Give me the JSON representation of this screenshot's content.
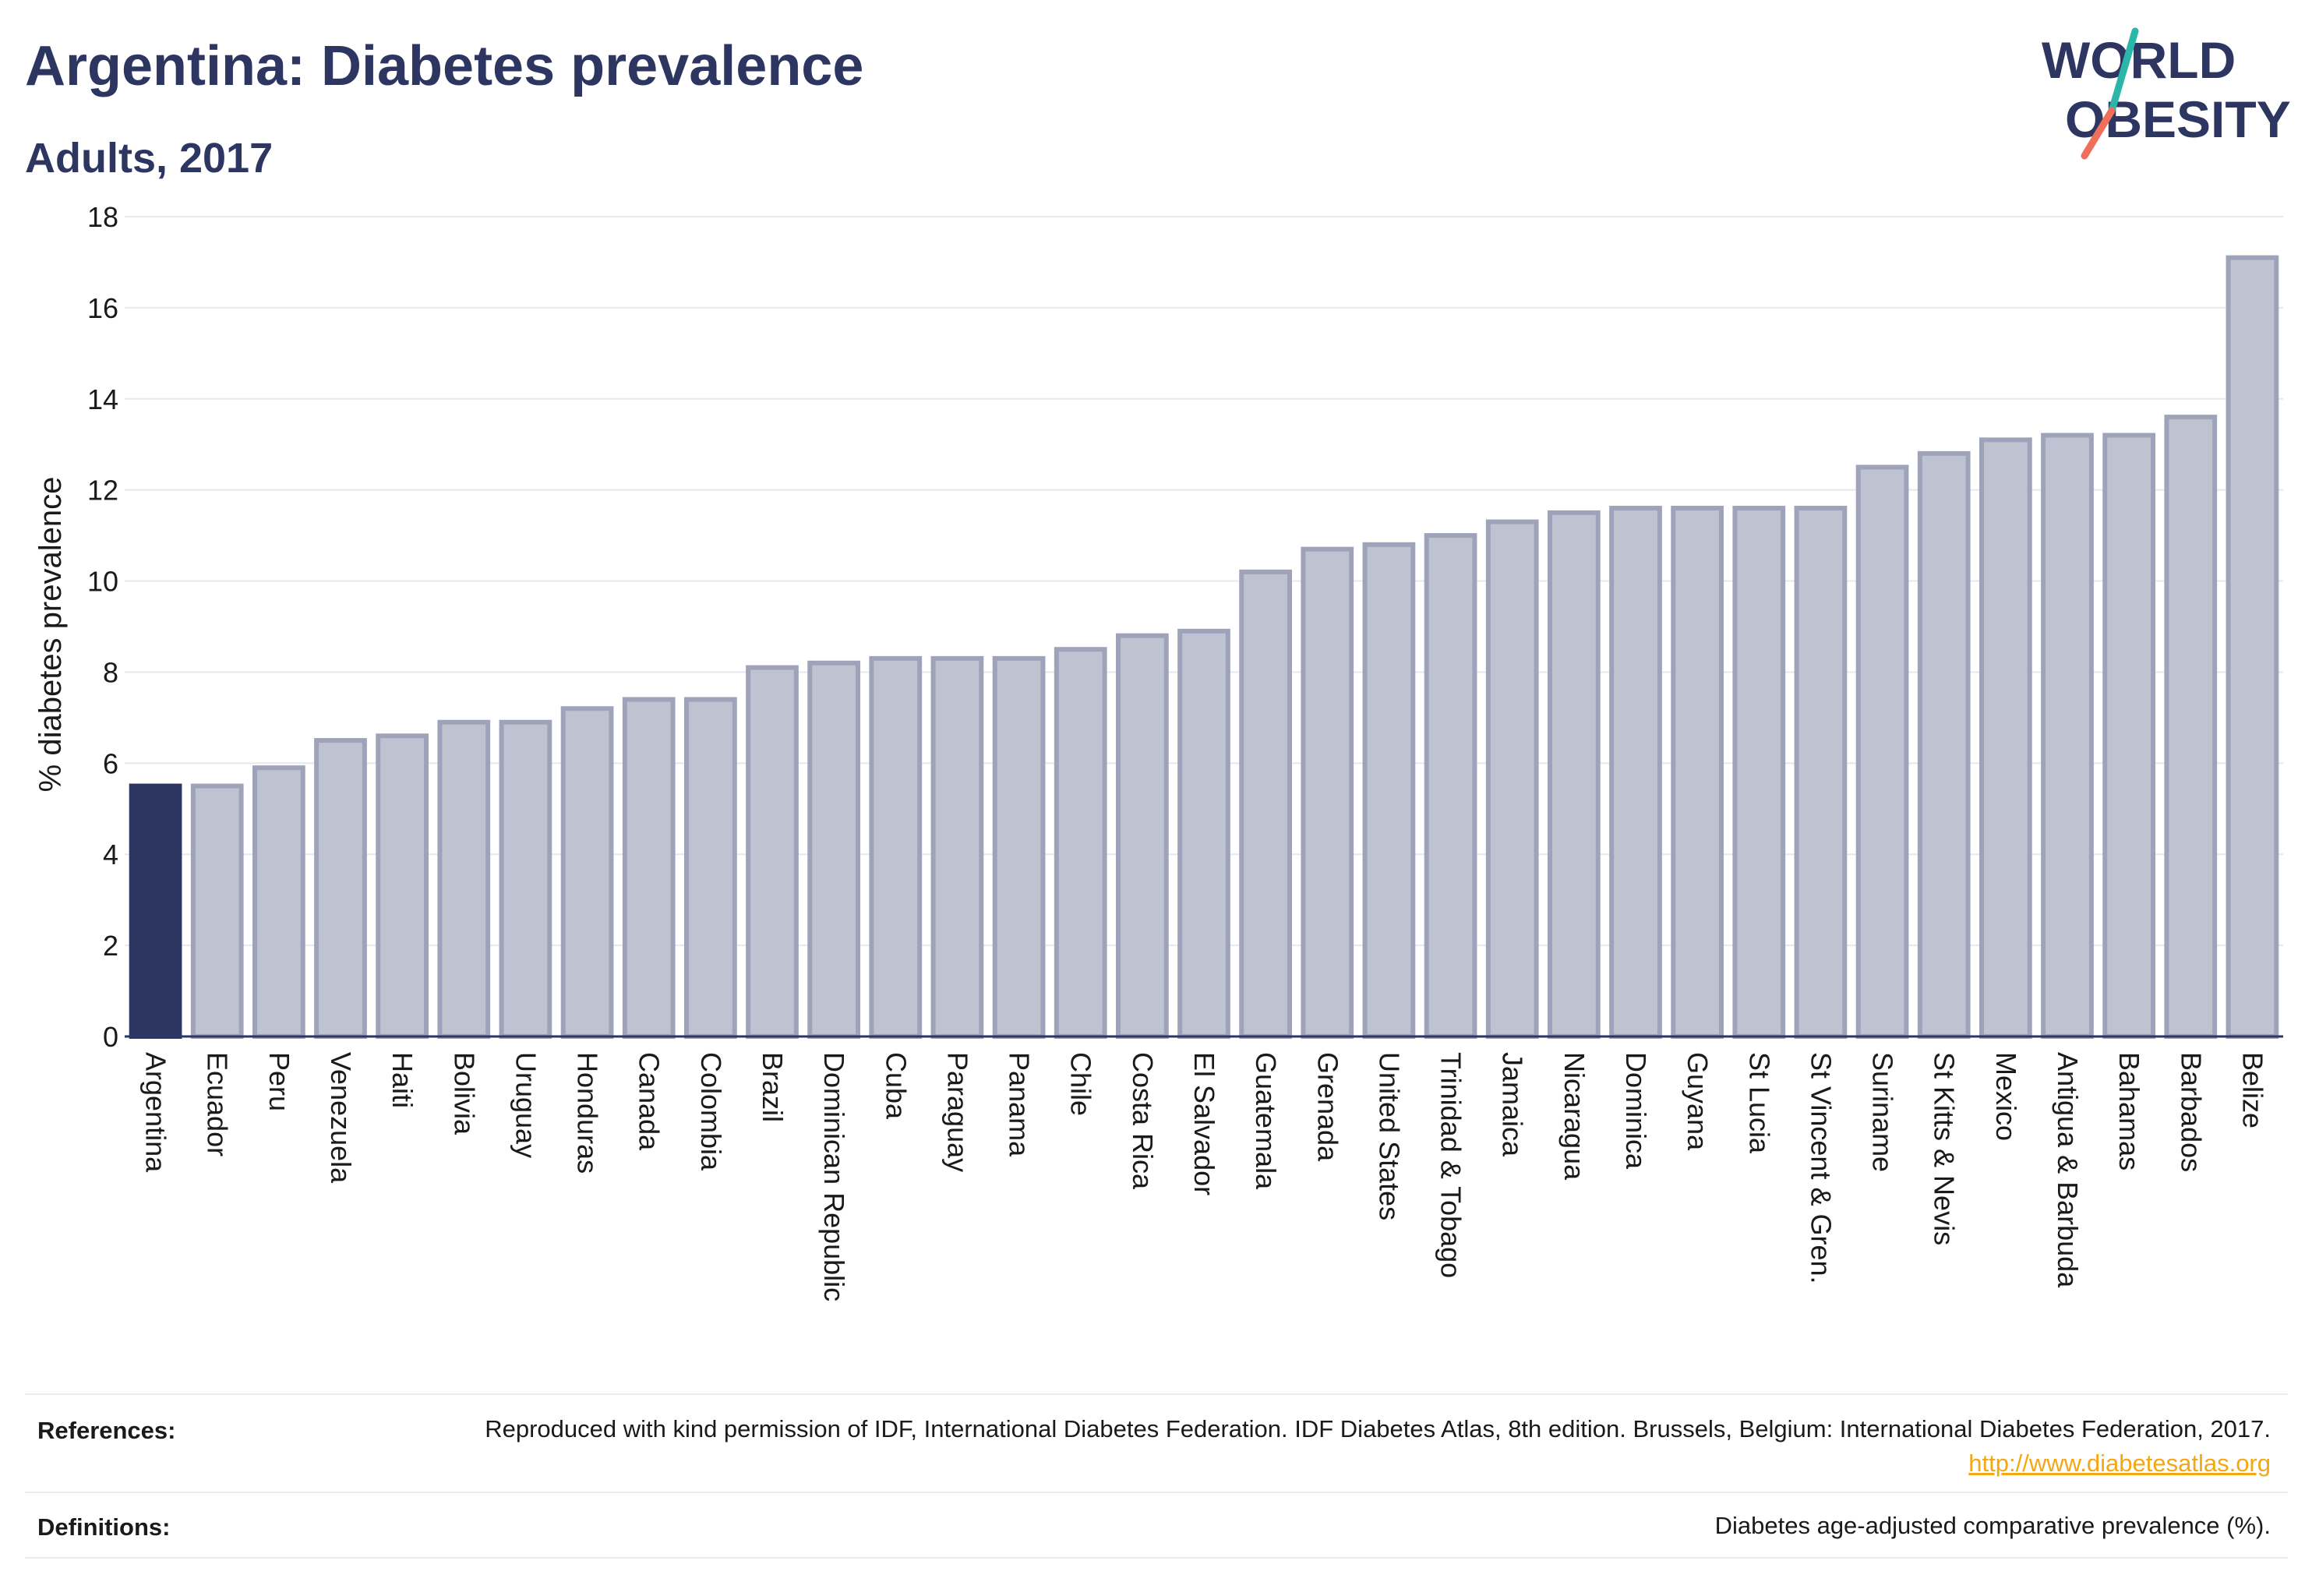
{
  "header": {
    "title": "Argentina: Diabetes prevalence",
    "subtitle": "Adults, 2017"
  },
  "logo": {
    "line1": "WORLD",
    "line2": "OBESITY",
    "accent_teal": "#2ab7a9",
    "accent_coral": "#ef6f5a"
  },
  "colors": {
    "highlight_bar": "#2d3561",
    "bar_fill": "#bfc2d0",
    "bar_stroke": "#9ea3ba",
    "text": "#2d3561"
  },
  "chart_data": {
    "type": "bar",
    "ylabel": "% diabetes prevalence",
    "xlabel": "",
    "ylim": [
      0,
      18
    ],
    "yticks": [
      0,
      2,
      4,
      6,
      8,
      10,
      12,
      14,
      16,
      18
    ],
    "grid": true,
    "highlight": "Argentina",
    "categories": [
      "Argentina",
      "Ecuador",
      "Peru",
      "Venezuela",
      "Haiti",
      "Bolivia",
      "Uruguay",
      "Honduras",
      "Canada",
      "Colombia",
      "Brazil",
      "Dominican Republic",
      "Cuba",
      "Paraguay",
      "Panama",
      "Chile",
      "Costa Rica",
      "El Salvador",
      "Guatemala",
      "Grenada",
      "United States",
      "Trinidad & Tobago",
      "Jamaica",
      "Nicaragua",
      "Dominica",
      "Guyana",
      "St Lucia",
      "St Vincent & Gren.",
      "Suriname",
      "St Kitts & Nevis",
      "Mexico",
      "Antigua & Barbuda",
      "Bahamas",
      "Barbados",
      "Belize"
    ],
    "values": [
      5.5,
      5.5,
      5.9,
      6.5,
      6.6,
      6.9,
      6.9,
      7.2,
      7.4,
      7.4,
      8.1,
      8.2,
      8.3,
      8.3,
      8.3,
      8.5,
      8.8,
      8.9,
      10.2,
      10.7,
      10.8,
      11.0,
      11.3,
      11.5,
      11.6,
      11.6,
      11.6,
      11.6,
      12.5,
      12.8,
      13.1,
      13.2,
      13.2,
      13.6,
      17.1
    ]
  },
  "footer": {
    "references_label": "References:",
    "references_text": "Reproduced with kind permission of IDF, International Diabetes Federation. IDF Diabetes Atlas, 8th edition. Brussels, Belgium: International Diabetes Federation, 2017.",
    "references_link": "http://www.diabetesatlas.org",
    "definitions_label": "Definitions:",
    "definitions_text": "Diabetes age-adjusted comparative prevalence (%)."
  }
}
